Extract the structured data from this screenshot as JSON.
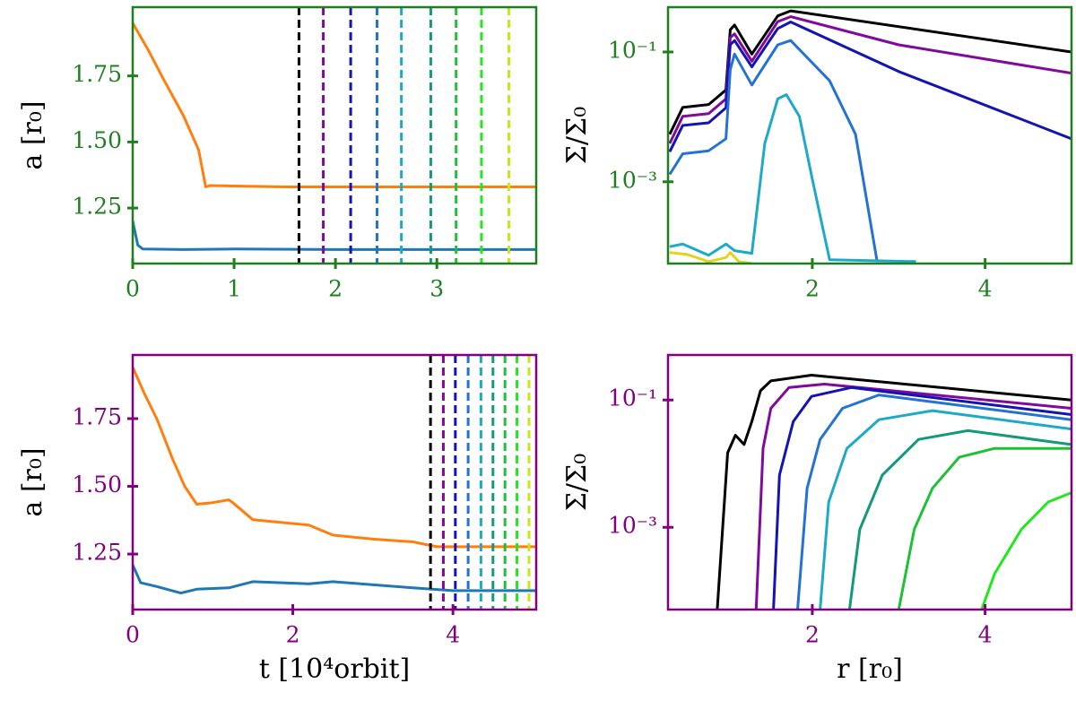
{
  "chart_data": [
    {
      "type": "line",
      "ylabel": "a [r₀]",
      "axis_color": "#1f7f1f",
      "xlim": [
        0,
        3.98
      ],
      "ylim": [
        1.04,
        2.01
      ],
      "xticks": [
        0,
        1,
        2,
        3
      ],
      "yticks": [
        1.25,
        {
          "value": 1.5,
          "label": "1.50"
        },
        1.75
      ],
      "series": [
        {
          "color": "#ff7f0e",
          "x": [
            0,
            0.15,
            0.3,
            0.5,
            0.65,
            0.72,
            0.76,
            1.5,
            2.5,
            3.98
          ],
          "values": [
            1.95,
            1.85,
            1.74,
            1.6,
            1.47,
            1.33,
            1.335,
            1.33,
            1.33,
            1.33
          ]
        },
        {
          "color": "#1f77b4",
          "x": [
            0,
            0.05,
            0.1,
            0.5,
            1.0,
            2.0,
            3.0,
            3.98
          ],
          "values": [
            1.2,
            1.11,
            1.095,
            1.093,
            1.095,
            1.093,
            1.093,
            1.093
          ]
        }
      ],
      "vlines": {
        "x": [
          1.64,
          1.88,
          2.15,
          2.41,
          2.65,
          2.94,
          3.19,
          3.44,
          3.71
        ],
        "colors": [
          "#000000",
          "#800a9b",
          "#1414b4",
          "#2472d1",
          "#1ea9c8",
          "#149a7a",
          "#1fbf3a",
          "#22e61e",
          "#c8e619"
        ]
      }
    },
    {
      "type": "line",
      "yscale": "log",
      "ylabel": "Σ/Σ₀",
      "axis_color": "#1f7f1f",
      "xlim": [
        0.33,
        5
      ],
      "ylim": [
        5.5e-05,
        0.49
      ],
      "xticks": [
        2,
        4
      ],
      "yticks": [
        {
          "value": 0.001,
          "label": "10⁻³"
        },
        {
          "value": 0.1,
          "label": "10⁻¹"
        }
      ],
      "series": [
        {
          "color": "#000000",
          "x": [
            0.35,
            0.5,
            0.8,
            1.0,
            1.05,
            1.1,
            1.3,
            1.6,
            1.75,
            5.0
          ],
          "values": [
            0.0054,
            0.014,
            0.0155,
            0.026,
            0.22,
            0.26,
            0.093,
            0.36,
            0.43,
            0.1
          ]
        },
        {
          "color": "#800a9b",
          "x": [
            0.35,
            0.5,
            0.8,
            1.0,
            1.05,
            1.1,
            1.3,
            1.6,
            1.75,
            3.0,
            5.0
          ],
          "values": [
            0.0039,
            0.0102,
            0.0112,
            0.019,
            0.166,
            0.19,
            0.072,
            0.294,
            0.35,
            0.129,
            0.047
          ]
        },
        {
          "color": "#1414b4",
          "x": [
            0.35,
            0.5,
            0.8,
            1.0,
            1.05,
            1.1,
            1.3,
            1.6,
            1.75,
            3.0,
            5.0
          ],
          "values": [
            0.0029,
            0.0074,
            0.0081,
            0.0138,
            0.129,
            0.15,
            0.059,
            0.23,
            0.29,
            0.05,
            0.0046
          ]
        },
        {
          "color": "#2472d1",
          "x": [
            0.35,
            0.5,
            0.8,
            1.0,
            1.05,
            1.1,
            1.3,
            1.6,
            1.75,
            2.2,
            2.5,
            2.75
          ],
          "values": [
            0.0013,
            0.0027,
            0.003,
            0.0046,
            0.053,
            0.093,
            0.031,
            0.129,
            0.15,
            0.036,
            0.0054,
            5.9e-05
          ]
        },
        {
          "color": "#1ea9c8",
          "x": [
            0.35,
            0.5,
            0.8,
            1.0,
            1.1,
            1.3,
            1.45,
            1.6,
            1.7,
            1.85,
            2.0,
            2.2,
            3.2
          ],
          "values": [
            0.0001,
            0.00011,
            7.4e-05,
            0.00011,
            8.7e-05,
            7.9e-05,
            0.0039,
            0.019,
            0.022,
            0.0102,
            0.0011,
            6.3e-05,
            5.9e-05
          ]
        },
        {
          "color": "#e6d21e",
          "x": [
            0.35,
            0.55,
            0.8,
            1.0,
            1.05,
            1.15,
            1.3
          ],
          "values": [
            8.1e-05,
            7.6e-05,
            5.9e-05,
            6.8e-05,
            8.1e-05,
            5.9e-05,
            5.5e-05
          ]
        }
      ]
    },
    {
      "type": "line",
      "ylabel": "a [r₀]",
      "xlabel": "t [10⁴orbit]",
      "axis_color": "#800080",
      "xlim": [
        0,
        5.04
      ],
      "ylim": [
        1.045,
        1.985
      ],
      "xticks": [
        0,
        2,
        4
      ],
      "yticks": [
        1.25,
        {
          "value": 1.5,
          "label": "1.50"
        },
        1.75
      ],
      "series": [
        {
          "color": "#ff7f0e",
          "x": [
            0,
            0.15,
            0.3,
            0.5,
            0.65,
            0.8,
            1.0,
            1.2,
            1.25,
            1.5,
            2.2,
            2.5,
            3.0,
            3.5,
            3.8,
            5.04
          ],
          "values": [
            1.94,
            1.84,
            1.75,
            1.6,
            1.5,
            1.434,
            1.44,
            1.45,
            1.44,
            1.377,
            1.357,
            1.32,
            1.305,
            1.295,
            1.277,
            1.277
          ]
        },
        {
          "color": "#1f77b4",
          "x": [
            0,
            0.1,
            0.3,
            0.6,
            0.8,
            1.2,
            1.5,
            2.2,
            2.5,
            3.5,
            4.0,
            5.04
          ],
          "values": [
            1.21,
            1.144,
            1.13,
            1.106,
            1.12,
            1.125,
            1.148,
            1.14,
            1.148,
            1.125,
            1.115,
            1.115
          ]
        }
      ],
      "vlines": {
        "x": [
          3.72,
          3.88,
          4.03,
          4.19,
          4.35,
          4.5,
          4.65,
          4.8,
          4.95
        ],
        "colors": [
          "#000000",
          "#800a9b",
          "#1414b4",
          "#2472d1",
          "#1ea9c8",
          "#149a7a",
          "#1fbf3a",
          "#22e61e",
          "#c8e619"
        ]
      }
    },
    {
      "type": "line",
      "yscale": "log",
      "ylabel": "Σ/Σ₀",
      "xlabel": "r [r₀]",
      "axis_color": "#800080",
      "xlim": [
        0.33,
        5
      ],
      "ylim": [
        5.1e-05,
        0.51
      ],
      "xticks": [
        2,
        4
      ],
      "yticks": [
        {
          "value": 0.001,
          "label": "10⁻³"
        },
        {
          "value": 0.1,
          "label": "10⁻¹"
        }
      ],
      "series": [
        {
          "color": "#000000",
          "x": [
            0.9,
            1.02,
            1.11,
            1.21,
            1.3,
            1.4,
            1.52,
            1.99,
            5.0
          ],
          "values": [
            5.1e-05,
            0.0148,
            0.028,
            0.02,
            0.046,
            0.14,
            0.2,
            0.246,
            0.1
          ]
        },
        {
          "color": "#800a9b",
          "x": [
            1.35,
            1.43,
            1.52,
            1.73,
            2.14,
            5.0
          ],
          "values": [
            5.1e-05,
            0.0174,
            0.074,
            0.157,
            0.178,
            0.074
          ]
        },
        {
          "color": "#1414b4",
          "x": [
            1.55,
            1.62,
            1.78,
            1.99,
            2.45,
            5.0
          ],
          "values": [
            5.1e-05,
            0.0066,
            0.046,
            0.114,
            0.157,
            0.059
          ]
        },
        {
          "color": "#2472d1",
          "x": [
            1.83,
            1.94,
            2.09,
            2.35,
            2.77,
            5.0
          ],
          "values": [
            5.1e-05,
            0.0041,
            0.024,
            0.074,
            0.12,
            0.049
          ]
        },
        {
          "color": "#1ea9c8",
          "x": [
            2.09,
            2.19,
            2.4,
            2.77,
            3.39,
            5.0
          ],
          "values": [
            5.1e-05,
            0.0025,
            0.0174,
            0.049,
            0.068,
            0.035
          ]
        },
        {
          "color": "#149a7a",
          "x": [
            2.43,
            2.55,
            2.81,
            3.23,
            3.8,
            5.0
          ],
          "values": [
            5.1e-05,
            0.00093,
            0.0066,
            0.024,
            0.033,
            0.02
          ]
        },
        {
          "color": "#1fbf3a",
          "x": [
            3.0,
            3.18,
            3.39,
            3.7,
            4.11,
            5.0
          ],
          "values": [
            5.1e-05,
            0.00093,
            0.0041,
            0.0126,
            0.0174,
            0.0174
          ]
        },
        {
          "color": "#22e61e",
          "x": [
            3.96,
            4.11,
            4.42,
            4.73,
            5.0
          ],
          "values": [
            5.1e-05,
            0.000186,
            0.00093,
            0.0025,
            0.0035
          ]
        }
      ]
    }
  ]
}
